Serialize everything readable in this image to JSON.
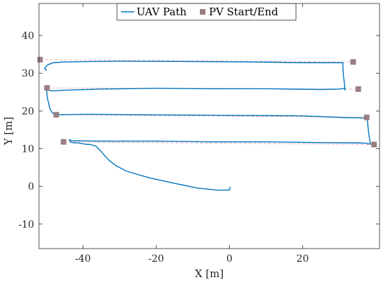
{
  "chart_data": {
    "type": "line",
    "xlabel": "X [m]",
    "ylabel": "Y [m]",
    "xlim": [
      -52,
      41
    ],
    "ylim": [
      -16.5,
      48.5
    ],
    "xticks": [
      -40,
      -20,
      0,
      20
    ],
    "yticks": [
      -10,
      0,
      10,
      20,
      30,
      40
    ],
    "grid": false,
    "legend_placement": "top-center",
    "legend": [
      {
        "label": "UAV Path",
        "kind": "line"
      },
      {
        "label": "PV Start/End",
        "kind": "marker"
      }
    ],
    "colors": {
      "path": "#0072BD",
      "marker": "#9A7E82",
      "reference": "#E6A3A3",
      "axes": "#262626"
    },
    "series": [
      {
        "name": "UAV Path",
        "points": [
          [
            0.2,
            -0.2
          ],
          [
            0.0,
            -1.0
          ],
          [
            -3.5,
            -1.0
          ],
          [
            -9,
            -0.4
          ],
          [
            -16,
            1.0
          ],
          [
            -22,
            2.3
          ],
          [
            -28,
            4.0
          ],
          [
            -31,
            5.5
          ],
          [
            -33,
            7.0
          ],
          [
            -35,
            9.2
          ],
          [
            -36.5,
            10.7
          ],
          [
            -38,
            11.1
          ],
          [
            -39.5,
            11.2
          ],
          [
            -41,
            11.5
          ],
          [
            -43,
            11.6
          ],
          [
            -43.5,
            11.9
          ],
          [
            -43.7,
            12.4
          ],
          [
            -43.0,
            12.1
          ],
          [
            -35,
            12.0
          ],
          [
            -20,
            12.0
          ],
          [
            -5,
            11.8
          ],
          [
            10,
            11.8
          ],
          [
            25,
            11.6
          ],
          [
            37,
            11.5
          ],
          [
            38.5,
            11.2
          ],
          [
            38.4,
            11.8
          ],
          [
            38.0,
            14.5
          ],
          [
            37.7,
            17.5
          ],
          [
            37.4,
            18.1
          ],
          [
            30,
            18.3
          ],
          [
            20,
            18.7
          ],
          [
            5,
            18.8
          ],
          [
            -10,
            18.9
          ],
          [
            -25,
            19.0
          ],
          [
            -38,
            19.1
          ],
          [
            -47,
            19.0
          ],
          [
            -48.3,
            19.4
          ],
          [
            -49.0,
            20.5
          ],
          [
            -49.6,
            23.0
          ],
          [
            -49.9,
            25.0
          ],
          [
            -49.7,
            25.6
          ],
          [
            -48.5,
            25.3
          ],
          [
            -45,
            25.5
          ],
          [
            -35,
            25.8
          ],
          [
            -20,
            26.0
          ],
          [
            -5,
            25.9
          ],
          [
            10,
            25.9
          ],
          [
            25,
            25.7
          ],
          [
            30,
            25.8
          ],
          [
            31.5,
            26.0
          ],
          [
            31.6,
            25.5
          ],
          [
            31.5,
            26.5
          ],
          [
            31.2,
            29.0
          ],
          [
            31.0,
            31.5
          ],
          [
            31.0,
            32.8
          ],
          [
            20,
            32.8
          ],
          [
            5,
            33.0
          ],
          [
            -10,
            33.1
          ],
          [
            -30,
            33.2
          ],
          [
            -45,
            33.0
          ],
          [
            -48.0,
            32.8
          ],
          [
            -49.5,
            32.3
          ],
          [
            -50.5,
            31.3
          ],
          [
            -50.0,
            30.8
          ]
        ]
      },
      {
        "name": "PV Start/End",
        "points": [
          [
            -51.7,
            33.6
          ],
          [
            33.8,
            33.0
          ],
          [
            -49.8,
            26.1
          ],
          [
            35.2,
            25.8
          ],
          [
            -47.3,
            19.0
          ],
          [
            37.5,
            18.3
          ],
          [
            -45.3,
            11.8
          ],
          [
            39.5,
            11.1
          ]
        ]
      },
      {
        "reference_lines": [
          [
            [
              -51.7,
              33.6
            ],
            [
              33.8,
              33.0
            ]
          ],
          [
            [
              -49.8,
              26.1
            ],
            [
              35.2,
              25.8
            ]
          ],
          [
            [
              -47.3,
              19.0
            ],
            [
              37.5,
              18.3
            ]
          ],
          [
            [
              -45.3,
              11.8
            ],
            [
              39.5,
              11.1
            ]
          ]
        ]
      }
    ]
  }
}
